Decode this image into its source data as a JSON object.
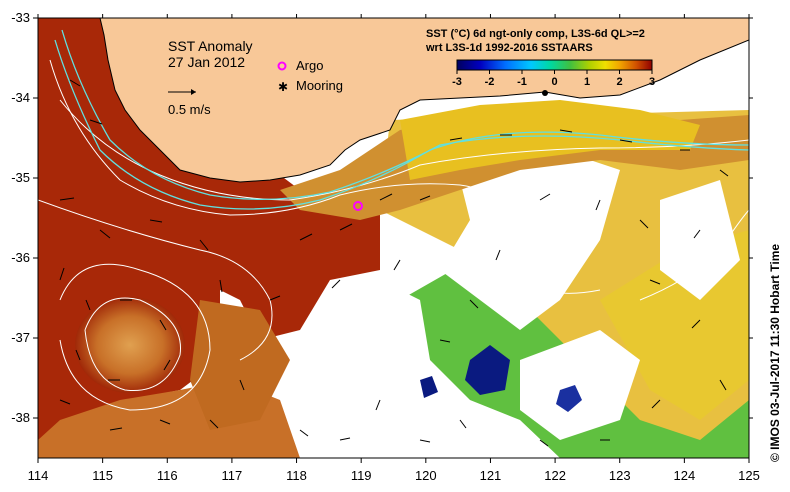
{
  "title": "SST Anomaly",
  "date": "27 Jan 2012",
  "vector_scale_label": "0.5 m/s",
  "legend": {
    "argo": "Argo",
    "mooring": "Mooring"
  },
  "product_line1": "SST (°C) 6d ngt-only comp, L3S-6d QL>=2",
  "product_line2": "wrt L3S-1d 1992-2016 SSTAARS",
  "colorbar": {
    "ticks": [
      "-3",
      "-2",
      "-1",
      "0",
      "1",
      "2",
      "3"
    ],
    "values": [
      -3,
      -2,
      -1,
      0,
      1,
      2,
      3
    ],
    "colors": [
      "#000060",
      "#0000b0",
      "#0060ff",
      "#00b0ff",
      "#00e0c0",
      "#40c040",
      "#a0d000",
      "#f0e000",
      "#f0b000",
      "#e07000",
      "#c03000",
      "#900000"
    ]
  },
  "axes": {
    "x_ticks": [
      "114",
      "115",
      "116",
      "117",
      "118",
      "119",
      "120",
      "121",
      "122",
      "123",
      "124",
      "125"
    ],
    "x_values": [
      114,
      115,
      116,
      117,
      118,
      119,
      120,
      121,
      122,
      123,
      124,
      125
    ],
    "y_ticks": [
      "-33",
      "-34",
      "-35",
      "-36",
      "-37",
      "-38"
    ],
    "y_values": [
      -33,
      -34,
      -35,
      -36,
      -37,
      -38
    ]
  },
  "credit": "© IMOS 03-Jul-2017 11:30 Hobart Time",
  "colors": {
    "land": "#f8c898",
    "hot": "#a02000",
    "warm": "#c85a10",
    "mid": "#e0a040",
    "yellow": "#e8d020",
    "green": "#40c040",
    "blue": "#0a1a80",
    "contour": "#ffffff",
    "cyan": "#60e0e0"
  }
}
